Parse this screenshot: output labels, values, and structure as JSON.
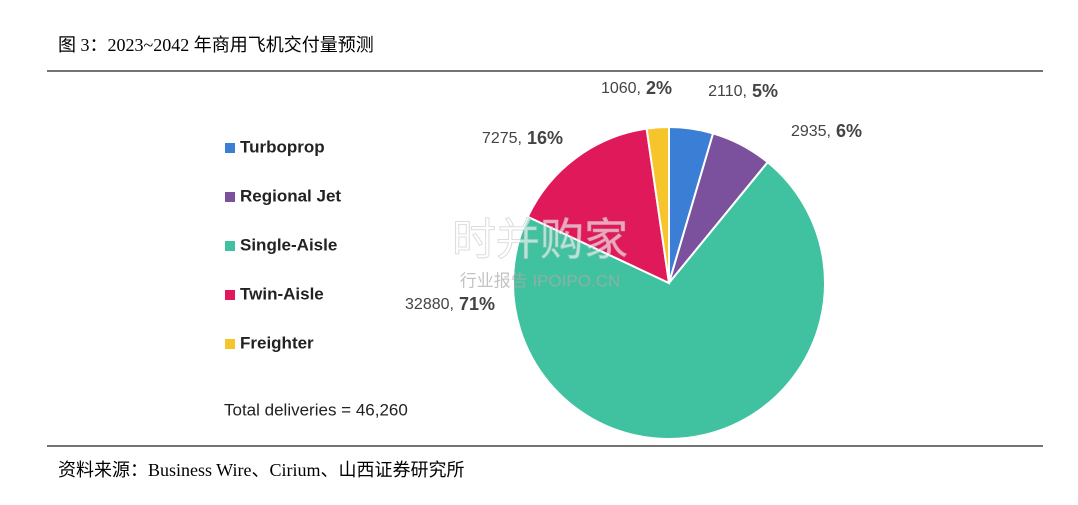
{
  "header": {
    "title": "图 3：2023~2042 年商用飞机交付量预测"
  },
  "chart_data": {
    "type": "pie",
    "categories": [
      "Turboprop",
      "Regional Jet",
      "Single-Aisle",
      "Twin-Aisle",
      "Freighter"
    ],
    "values": [
      2110,
      2935,
      32880,
      7275,
      1060
    ],
    "value_labels": [
      "2110,",
      "2935,",
      "32880,",
      "7275,",
      "1060,"
    ],
    "percent_labels": [
      "5%",
      "6%",
      "71%",
      "16%",
      "2%"
    ],
    "colors": [
      "#3a7fd5",
      "#7b519d",
      "#40c2a0",
      "#e0195a",
      "#f6c42b"
    ],
    "annotation": "Total deliveries = 46,260"
  },
  "watermark": {
    "main": "时并购家",
    "sub": "行业报告 IPOIPO.CN"
  },
  "footer": {
    "source": "资料来源：Business Wire、Cirium、山西证券研究所"
  }
}
